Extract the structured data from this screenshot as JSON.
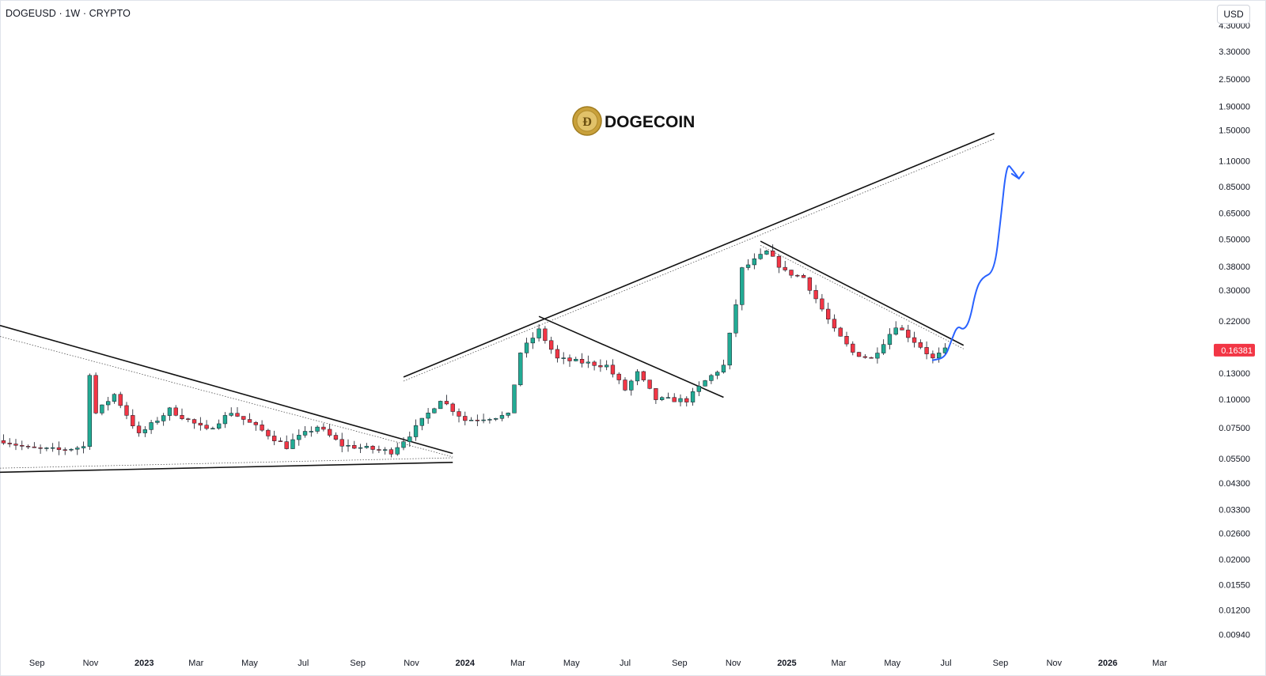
{
  "symbol_title": "DOGEUSD · 1W · CRYPTO",
  "currency_label": "USD",
  "logo_text": "DOGECOIN",
  "last_price": {
    "label": "0.16381",
    "value": 0.16381,
    "color": "#f23645"
  },
  "colors": {
    "up": "#22ab94",
    "down": "#f23645",
    "wick": "#131722",
    "trendline": "#111111",
    "forecast": "#2962ff",
    "background": "#ffffff"
  },
  "chart_data": {
    "type": "candlestick",
    "scale": "log",
    "ylim": [
      0.0085,
      5.2
    ],
    "xlim": [
      "2022-07-21",
      "2026-04-01"
    ],
    "grid": false,
    "y_ticks": [
      {
        "value": 4.3,
        "label": "4.30000"
      },
      {
        "value": 3.3,
        "label": "3.30000"
      },
      {
        "value": 2.5,
        "label": "2.50000"
      },
      {
        "value": 1.9,
        "label": "1.90000"
      },
      {
        "value": 1.5,
        "label": "1.50000"
      },
      {
        "value": 1.1,
        "label": "1.10000"
      },
      {
        "value": 0.85,
        "label": "0.85000"
      },
      {
        "value": 0.65,
        "label": "0.65000"
      },
      {
        "value": 0.5,
        "label": "0.50000"
      },
      {
        "value": 0.38,
        "label": "0.38000"
      },
      {
        "value": 0.3,
        "label": "0.30000"
      },
      {
        "value": 0.22,
        "label": "0.22000"
      },
      {
        "value": 0.13,
        "label": "0.13000"
      },
      {
        "value": 0.1,
        "label": "0.10000"
      },
      {
        "value": 0.075,
        "label": "0.07500"
      },
      {
        "value": 0.055,
        "label": "0.05500"
      },
      {
        "value": 0.043,
        "label": "0.04300"
      },
      {
        "value": 0.033,
        "label": "0.03300"
      },
      {
        "value": 0.026,
        "label": "0.02600"
      },
      {
        "value": 0.02,
        "label": "0.02000"
      },
      {
        "value": 0.0155,
        "label": "0.01550"
      },
      {
        "value": 0.012,
        "label": "0.01200"
      },
      {
        "value": 0.0094,
        "label": "0.00940"
      }
    ],
    "x_ticks": [
      {
        "date": "2022-09-01",
        "label": "Sep",
        "year": false
      },
      {
        "date": "2022-11-01",
        "label": "Nov",
        "year": false
      },
      {
        "date": "2023-01-01",
        "label": "2023",
        "year": true
      },
      {
        "date": "2023-03-01",
        "label": "Mar",
        "year": false
      },
      {
        "date": "2023-05-01",
        "label": "May",
        "year": false
      },
      {
        "date": "2023-07-01",
        "label": "Jul",
        "year": false
      },
      {
        "date": "2023-09-01",
        "label": "Sep",
        "year": false
      },
      {
        "date": "2023-11-01",
        "label": "Nov",
        "year": false
      },
      {
        "date": "2024-01-01",
        "label": "2024",
        "year": true
      },
      {
        "date": "2024-03-01",
        "label": "Mar",
        "year": false
      },
      {
        "date": "2024-05-01",
        "label": "May",
        "year": false
      },
      {
        "date": "2024-07-01",
        "label": "Jul",
        "year": false
      },
      {
        "date": "2024-09-01",
        "label": "Sep",
        "year": false
      },
      {
        "date": "2024-11-01",
        "label": "Nov",
        "year": false
      },
      {
        "date": "2025-01-01",
        "label": "2025",
        "year": true
      },
      {
        "date": "2025-03-01",
        "label": "Mar",
        "year": false
      },
      {
        "date": "2025-05-01",
        "label": "May",
        "year": false
      },
      {
        "date": "2025-07-01",
        "label": "Jul",
        "year": false
      },
      {
        "date": "2025-09-01",
        "label": "Sep",
        "year": false
      },
      {
        "date": "2025-11-01",
        "label": "Nov",
        "year": false
      },
      {
        "date": "2026-01-01",
        "label": "2026",
        "year": true
      },
      {
        "date": "2026-03-01",
        "label": "Mar",
        "year": false
      }
    ],
    "key_points": [
      {
        "date": "2022-07-25",
        "close": 0.066
      },
      {
        "date": "2022-08-22",
        "close": 0.061
      },
      {
        "date": "2022-09-26",
        "close": 0.06
      },
      {
        "date": "2022-10-24",
        "close": 0.062
      },
      {
        "date": "2022-10-31",
        "close": 0.13
      },
      {
        "date": "2022-11-07",
        "close": 0.087
      },
      {
        "date": "2022-11-28",
        "close": 0.105
      },
      {
        "date": "2022-12-26",
        "close": 0.07
      },
      {
        "date": "2023-01-30",
        "close": 0.09
      },
      {
        "date": "2023-03-13",
        "close": 0.073
      },
      {
        "date": "2023-04-10",
        "close": 0.088
      },
      {
        "date": "2023-05-15",
        "close": 0.073
      },
      {
        "date": "2023-06-12",
        "close": 0.062
      },
      {
        "date": "2023-06-19",
        "close": 0.066
      },
      {
        "date": "2023-07-17",
        "close": 0.076
      },
      {
        "date": "2023-08-14",
        "close": 0.063
      },
      {
        "date": "2023-09-11",
        "close": 0.061
      },
      {
        "date": "2023-10-09",
        "close": 0.059
      },
      {
        "date": "2023-10-30",
        "close": 0.07
      },
      {
        "date": "2023-12-04",
        "close": 0.1
      },
      {
        "date": "2024-01-01",
        "close": 0.081
      },
      {
        "date": "2024-02-19",
        "close": 0.085
      },
      {
        "date": "2024-03-04",
        "close": 0.16
      },
      {
        "date": "2024-03-25",
        "close": 0.2
      },
      {
        "date": "2024-04-15",
        "close": 0.15
      },
      {
        "date": "2024-06-10",
        "close": 0.14
      },
      {
        "date": "2024-07-01",
        "close": 0.11
      },
      {
        "date": "2024-07-15",
        "close": 0.13
      },
      {
        "date": "2024-08-05",
        "close": 0.1
      },
      {
        "date": "2024-09-09",
        "close": 0.099
      },
      {
        "date": "2024-09-30",
        "close": 0.12
      },
      {
        "date": "2024-10-21",
        "close": 0.14
      },
      {
        "date": "2024-11-04",
        "close": 0.26
      },
      {
        "date": "2024-11-11",
        "close": 0.37
      },
      {
        "date": "2024-12-09",
        "close": 0.44
      },
      {
        "date": "2024-12-30",
        "close": 0.36
      },
      {
        "date": "2025-01-20",
        "close": 0.34
      },
      {
        "date": "2025-02-24",
        "close": 0.2
      },
      {
        "date": "2025-03-17",
        "close": 0.16
      },
      {
        "date": "2025-04-07",
        "close": 0.15
      },
      {
        "date": "2025-05-05",
        "close": 0.21
      },
      {
        "date": "2025-06-02",
        "close": 0.17
      },
      {
        "date": "2025-06-16",
        "close": 0.15
      },
      {
        "date": "2025-06-30",
        "close": 0.16381
      }
    ],
    "trendlines": [
      {
        "name": "upper-resistance",
        "style": "solid",
        "from": {
          "date": "2023-10-23",
          "price": 0.125
        },
        "to": {
          "date": "2025-08-25",
          "price": 1.45
        }
      },
      {
        "name": "upper-resistance-parallel",
        "style": "dotted",
        "from": {
          "date": "2023-10-23",
          "price": 0.12
        },
        "to": {
          "date": "2025-08-25",
          "price": 1.37
        }
      },
      {
        "name": "wedge-top",
        "style": "solid",
        "from": {
          "date": "2022-07-21",
          "price": 0.21
        },
        "to": {
          "date": "2023-12-18",
          "price": 0.058
        }
      },
      {
        "name": "wedge-top-parallel",
        "style": "dotted",
        "from": {
          "date": "2022-07-21",
          "price": 0.188
        },
        "to": {
          "date": "2023-12-18",
          "price": 0.056
        }
      },
      {
        "name": "wedge-bottom",
        "style": "solid",
        "from": {
          "date": "2022-07-21",
          "price": 0.048
        },
        "to": {
          "date": "2023-12-18",
          "price": 0.053
        }
      },
      {
        "name": "wedge-bottom-parallel",
        "style": "dotted",
        "from": {
          "date": "2022-07-21",
          "price": 0.05
        },
        "to": {
          "date": "2023-12-18",
          "price": 0.0555
        }
      },
      {
        "name": "descending-2024",
        "style": "solid",
        "from": {
          "date": "2024-03-25",
          "price": 0.23
        },
        "to": {
          "date": "2024-10-21",
          "price": 0.102
        }
      },
      {
        "name": "descending-2025",
        "style": "solid",
        "from": {
          "date": "2024-12-02",
          "price": 0.49
        },
        "to": {
          "date": "2025-07-21",
          "price": 0.172
        }
      },
      {
        "name": "descending-2025-parallel",
        "style": "dotted",
        "from": {
          "date": "2024-12-02",
          "price": 0.47
        },
        "to": {
          "date": "2025-07-21",
          "price": 0.166
        }
      }
    ],
    "forecast_path": [
      {
        "date": "2025-06-16",
        "price": 0.148
      },
      {
        "date": "2025-06-30",
        "price": 0.152
      },
      {
        "date": "2025-07-07",
        "price": 0.18
      },
      {
        "date": "2025-07-14",
        "price": 0.21
      },
      {
        "date": "2025-07-21",
        "price": 0.2
      },
      {
        "date": "2025-07-28",
        "price": 0.22
      },
      {
        "date": "2025-08-04",
        "price": 0.3
      },
      {
        "date": "2025-08-11",
        "price": 0.34
      },
      {
        "date": "2025-08-25",
        "price": 0.36
      },
      {
        "date": "2025-09-01",
        "price": 0.6
      },
      {
        "date": "2025-09-08",
        "price": 1.08
      },
      {
        "date": "2025-09-15",
        "price": 1.0
      },
      {
        "date": "2025-09-22",
        "price": 0.92
      }
    ]
  }
}
